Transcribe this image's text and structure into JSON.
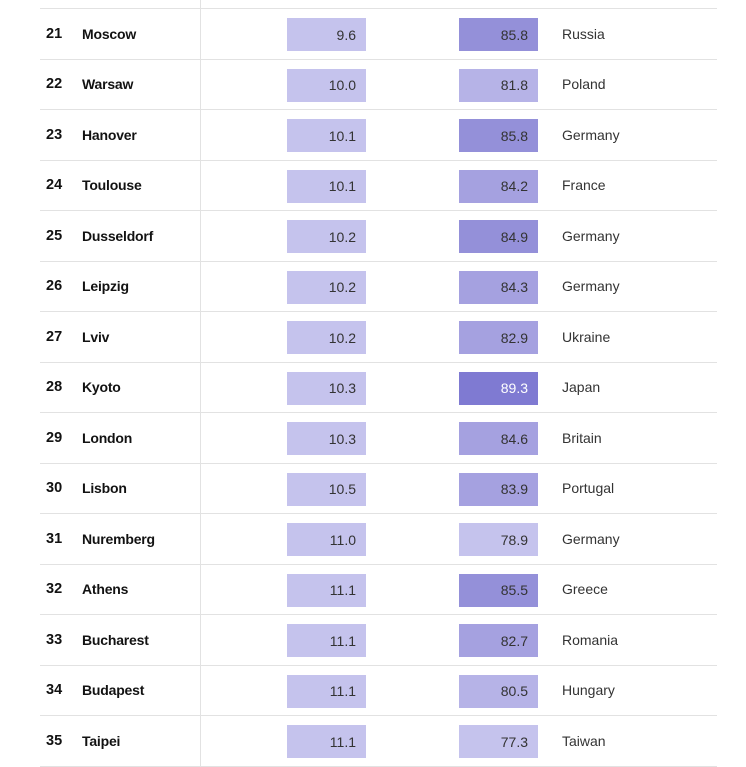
{
  "colors": {
    "lv1": "#c5c3ed",
    "lv2": "#b6b3e7",
    "lv3": "#a5a1e0",
    "lv4": "#9490d9",
    "lv5": "#7f7ad2"
  },
  "rows": [
    {
      "rank": "21",
      "city": "Moscow",
      "value_a": "9.6",
      "value_b": "85.8",
      "country": "Russia",
      "a_level": 1,
      "b_level": 4
    },
    {
      "rank": "22",
      "city": "Warsaw",
      "value_a": "10.0",
      "value_b": "81.8",
      "country": "Poland",
      "a_level": 1,
      "b_level": 2
    },
    {
      "rank": "23",
      "city": "Hanover",
      "value_a": "10.1",
      "value_b": "85.8",
      "country": "Germany",
      "a_level": 1,
      "b_level": 4
    },
    {
      "rank": "24",
      "city": "Toulouse",
      "value_a": "10.1",
      "value_b": "84.2",
      "country": "France",
      "a_level": 1,
      "b_level": 3
    },
    {
      "rank": "25",
      "city": "Dusseldorf",
      "value_a": "10.2",
      "value_b": "84.9",
      "country": "Germany",
      "a_level": 1,
      "b_level": 4
    },
    {
      "rank": "26",
      "city": "Leipzig",
      "value_a": "10.2",
      "value_b": "84.3",
      "country": "Germany",
      "a_level": 1,
      "b_level": 3
    },
    {
      "rank": "27",
      "city": "Lviv",
      "value_a": "10.2",
      "value_b": "82.9",
      "country": "Ukraine",
      "a_level": 1,
      "b_level": 3
    },
    {
      "rank": "28",
      "city": "Kyoto",
      "value_a": "10.3",
      "value_b": "89.3",
      "country": "Japan",
      "a_level": 1,
      "b_level": 5
    },
    {
      "rank": "29",
      "city": "London",
      "value_a": "10.3",
      "value_b": "84.6",
      "country": "Britain",
      "a_level": 1,
      "b_level": 3
    },
    {
      "rank": "30",
      "city": "Lisbon",
      "value_a": "10.5",
      "value_b": "83.9",
      "country": "Portugal",
      "a_level": 1,
      "b_level": 3
    },
    {
      "rank": "31",
      "city": "Nuremberg",
      "value_a": "11.0",
      "value_b": "78.9",
      "country": "Germany",
      "a_level": 1,
      "b_level": 1
    },
    {
      "rank": "32",
      "city": "Athens",
      "value_a": "11.1",
      "value_b": "85.5",
      "country": "Greece",
      "a_level": 1,
      "b_level": 4
    },
    {
      "rank": "33",
      "city": "Bucharest",
      "value_a": "11.1",
      "value_b": "82.7",
      "country": "Romania",
      "a_level": 1,
      "b_level": 3
    },
    {
      "rank": "34",
      "city": "Budapest",
      "value_a": "11.1",
      "value_b": "80.5",
      "country": "Hungary",
      "a_level": 1,
      "b_level": 2
    },
    {
      "rank": "35",
      "city": "Taipei",
      "value_a": "11.1",
      "value_b": "77.3",
      "country": "Taiwan",
      "a_level": 1,
      "b_level": 1
    }
  ]
}
